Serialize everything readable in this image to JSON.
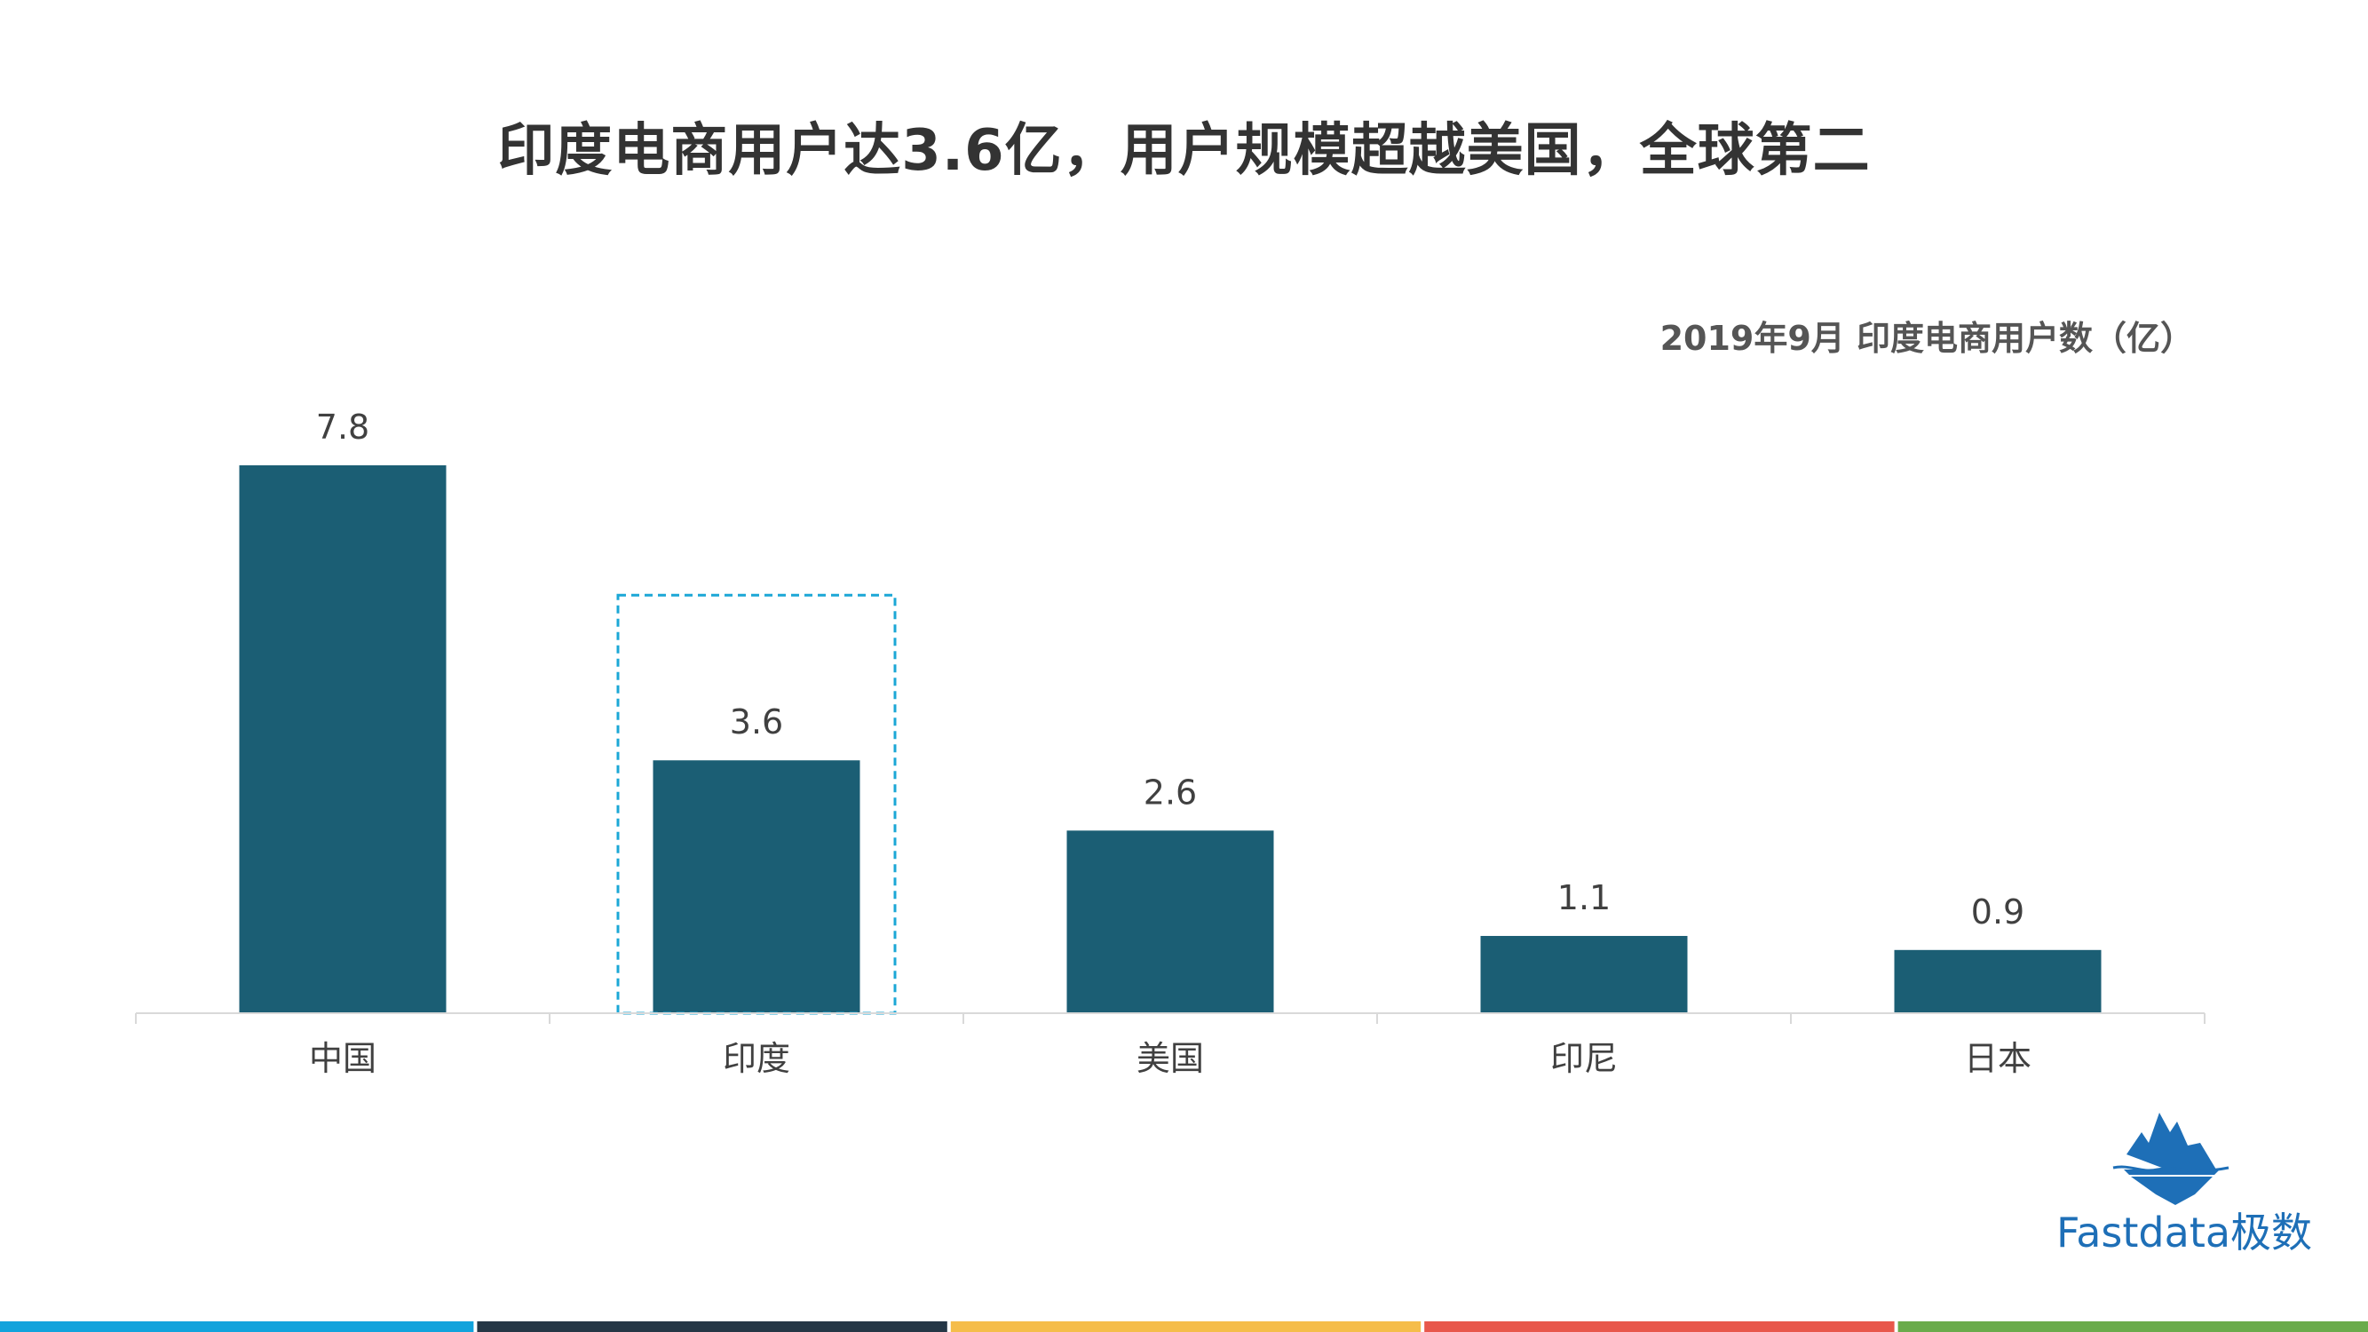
{
  "title": "印度电商用户达3.6亿，用户规模超越美国，全球第二",
  "subtitle": "2019年9月 印度电商用户数（亿）",
  "brand": {
    "name": "Fastdata极数",
    "icon": "iceberg-logo-icon"
  },
  "colors": {
    "bar": "#1b5e74",
    "highlight_border": "#1ba7d6",
    "axis": "#d9d9d9",
    "label": "#404040",
    "brand": "#1e6fb7",
    "stripes": [
      "#12a3dc",
      "#253746",
      "#f5bd4a",
      "#e8574b",
      "#6aab4b"
    ]
  },
  "chart_data": {
    "type": "bar",
    "categories": [
      "中国",
      "印度",
      "美国",
      "印尼",
      "日本"
    ],
    "values": [
      7.8,
      3.6,
      2.6,
      1.1,
      0.9
    ],
    "highlight_category": "印度",
    "title": "2019年9月 印度电商用户数（亿）",
    "xlabel": "",
    "ylabel": "",
    "ylim": [
      0,
      7.8
    ],
    "grid": false,
    "data_labels": true
  }
}
